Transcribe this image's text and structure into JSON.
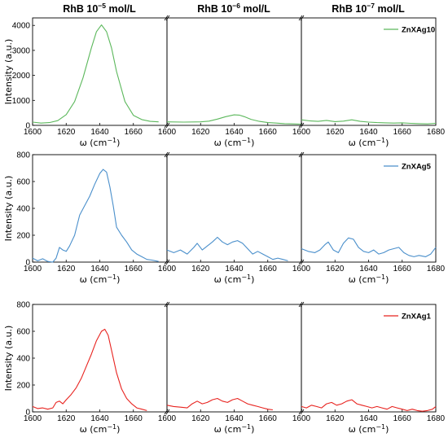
{
  "column_titles": [
    {
      "base": "RhB 10",
      "sup": "−5",
      "tail": " mol/L"
    },
    {
      "base": "RhB 10",
      "sup": "−6",
      "tail": " mol/L"
    },
    {
      "base": "RhB 10",
      "sup": "−7",
      "tail": " mol/L"
    }
  ],
  "axis_text": {
    "xlabel_base": "ω (cm",
    "xlabel_sup": "−1",
    "xlabel_tail": ")",
    "ylabel": "Intensity (a.u.)"
  },
  "xticks": [
    1600,
    1620,
    1640,
    1660,
    1680
  ],
  "rows": [
    {
      "legend": "ZnXAg10",
      "color": "#5cb85c",
      "yticks": [
        0,
        1000,
        2000,
        3000,
        4000
      ],
      "ylim": [
        0,
        4300
      ]
    },
    {
      "legend": "ZnXAg5",
      "color": "#4a8fcb",
      "yticks": [
        0,
        200,
        400,
        600,
        800
      ],
      "ylim": [
        0,
        800
      ]
    },
    {
      "legend": "ZnXAg1",
      "color": "#e8231f",
      "yticks": [
        0,
        200,
        400,
        600,
        800
      ],
      "ylim": [
        0,
        800
      ]
    }
  ],
  "chart_data": [
    {
      "type": "line",
      "row": "ZnXAg10",
      "column": "RhB 10−5 mol/L",
      "xlim": [
        1600,
        1680
      ],
      "ylim": [
        0,
        4300
      ],
      "x": [
        1600,
        1605,
        1610,
        1615,
        1620,
        1625,
        1630,
        1635,
        1638,
        1641,
        1644,
        1647,
        1650,
        1655,
        1660,
        1665,
        1670,
        1675
      ],
      "y": [
        130,
        90,
        110,
        190,
        430,
        950,
        1900,
        3100,
        3750,
        4020,
        3750,
        3100,
        2150,
        950,
        400,
        230,
        160,
        140
      ]
    },
    {
      "type": "line",
      "row": "ZnXAg10",
      "column": "RhB 10−6 mol/L",
      "xlim": [
        1600,
        1680
      ],
      "ylim": [
        0,
        4300
      ],
      "x": [
        1600,
        1610,
        1620,
        1625,
        1630,
        1635,
        1640,
        1643,
        1646,
        1650,
        1655,
        1660,
        1665,
        1670,
        1675,
        1680
      ],
      "y": [
        140,
        130,
        140,
        170,
        250,
        350,
        420,
        410,
        350,
        240,
        160,
        110,
        90,
        70,
        60,
        50
      ]
    },
    {
      "type": "line",
      "row": "ZnXAg10",
      "column": "RhB 10−7 mol/L",
      "xlim": [
        1600,
        1680
      ],
      "ylim": [
        0,
        4300
      ],
      "x": [
        1600,
        1605,
        1610,
        1615,
        1620,
        1625,
        1630,
        1635,
        1640,
        1645,
        1650,
        1655,
        1660,
        1665,
        1670,
        1675,
        1680
      ],
      "y": [
        220,
        180,
        160,
        200,
        150,
        170,
        220,
        160,
        130,
        110,
        100,
        90,
        100,
        80,
        70,
        60,
        80
      ]
    },
    {
      "type": "line",
      "row": "ZnXAg5",
      "column": "RhB 10−5 mol/L",
      "xlim": [
        1600,
        1680
      ],
      "ylim": [
        0,
        800
      ],
      "x": [
        1600,
        1603,
        1606,
        1609,
        1612,
        1614,
        1616,
        1618,
        1620,
        1622,
        1625,
        1628,
        1631,
        1634,
        1637,
        1640,
        1642,
        1644,
        1646,
        1648,
        1650,
        1653,
        1656,
        1659,
        1662,
        1665,
        1668,
        1671,
        1675
      ],
      "y": [
        30,
        10,
        25,
        5,
        0,
        30,
        110,
        90,
        80,
        120,
        200,
        350,
        420,
        490,
        580,
        660,
        690,
        670,
        560,
        420,
        260,
        200,
        150,
        90,
        60,
        40,
        20,
        15,
        5
      ]
    },
    {
      "type": "line",
      "row": "ZnXAg5",
      "column": "RhB 10−6 mol/L",
      "xlim": [
        1600,
        1680
      ],
      "ylim": [
        0,
        800
      ],
      "x": [
        1600,
        1604,
        1608,
        1612,
        1616,
        1618,
        1621,
        1624,
        1627,
        1630,
        1633,
        1636,
        1639,
        1642,
        1645,
        1648,
        1651,
        1654,
        1657,
        1660,
        1663,
        1666,
        1669,
        1672
      ],
      "y": [
        90,
        70,
        90,
        60,
        110,
        140,
        90,
        120,
        150,
        185,
        150,
        130,
        150,
        160,
        140,
        100,
        60,
        80,
        60,
        40,
        20,
        30,
        20,
        10
      ]
    },
    {
      "type": "line",
      "row": "ZnXAg5",
      "column": "RhB 10−7 mol/L",
      "xlim": [
        1600,
        1680
      ],
      "ylim": [
        0,
        800
      ],
      "x": [
        1600,
        1604,
        1608,
        1611,
        1614,
        1616,
        1619,
        1622,
        1625,
        1628,
        1631,
        1634,
        1637,
        1640,
        1643,
        1646,
        1649,
        1652,
        1655,
        1658,
        1661,
        1664,
        1667,
        1670,
        1674,
        1677,
        1680
      ],
      "y": [
        100,
        80,
        70,
        90,
        130,
        150,
        90,
        70,
        140,
        180,
        170,
        110,
        80,
        70,
        90,
        60,
        70,
        90,
        100,
        110,
        70,
        50,
        40,
        50,
        40,
        60,
        110
      ]
    },
    {
      "type": "line",
      "row": "ZnXAg1",
      "column": "RhB 10−5 mol/L",
      "xlim": [
        1600,
        1680
      ],
      "ylim": [
        0,
        800
      ],
      "x": [
        1600,
        1603,
        1606,
        1609,
        1612,
        1614,
        1616,
        1618,
        1620,
        1623,
        1626,
        1629,
        1632,
        1635,
        1638,
        1641,
        1643,
        1645,
        1647,
        1650,
        1653,
        1656,
        1659,
        1662,
        1665,
        1668
      ],
      "y": [
        40,
        25,
        30,
        20,
        30,
        70,
        80,
        60,
        90,
        130,
        180,
        250,
        340,
        430,
        530,
        600,
        615,
        570,
        460,
        290,
        170,
        100,
        60,
        30,
        20,
        10
      ]
    },
    {
      "type": "line",
      "row": "ZnXAg1",
      "column": "RhB 10−6 mol/L",
      "xlim": [
        1600,
        1680
      ],
      "ylim": [
        0,
        800
      ],
      "x": [
        1600,
        1604,
        1608,
        1612,
        1615,
        1618,
        1621,
        1624,
        1627,
        1630,
        1633,
        1636,
        1639,
        1642,
        1645,
        1648,
        1651,
        1654,
        1657,
        1660,
        1663
      ],
      "y": [
        50,
        40,
        35,
        30,
        60,
        80,
        60,
        70,
        90,
        100,
        80,
        70,
        90,
        100,
        80,
        60,
        50,
        40,
        30,
        20,
        15
      ]
    },
    {
      "type": "line",
      "row": "ZnXAg1",
      "column": "RhB 10−7 mol/L",
      "xlim": [
        1600,
        1680
      ],
      "ylim": [
        0,
        800
      ],
      "x": [
        1600,
        1603,
        1606,
        1609,
        1612,
        1615,
        1618,
        1621,
        1624,
        1627,
        1630,
        1633,
        1636,
        1639,
        1642,
        1645,
        1648,
        1651,
        1654,
        1657,
        1660,
        1663,
        1666,
        1669,
        1672,
        1675,
        1678,
        1680
      ],
      "y": [
        40,
        30,
        50,
        40,
        30,
        60,
        70,
        50,
        60,
        80,
        90,
        60,
        50,
        40,
        30,
        40,
        30,
        20,
        40,
        30,
        20,
        10,
        20,
        10,
        5,
        10,
        20,
        40
      ]
    }
  ]
}
